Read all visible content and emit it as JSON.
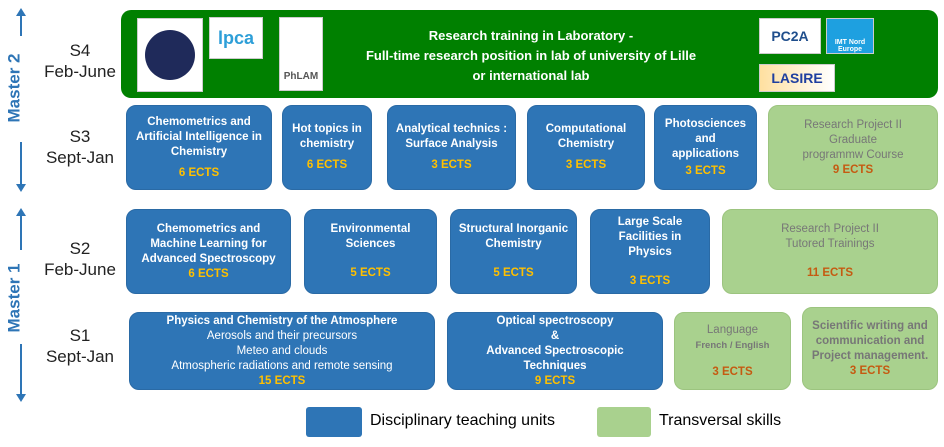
{
  "colors": {
    "disciplinary": "#2e75b6",
    "transversal": "#a9d18e",
    "research": "#008000",
    "ects_blue": "#ffc000",
    "ects_green": "#c55a11"
  },
  "levels": {
    "master2": "Master 2",
    "master1": "Master 1"
  },
  "semesters": [
    {
      "name": "S4",
      "period": "Feb-June"
    },
    {
      "name": "S3",
      "period": "Sept-Jan"
    },
    {
      "name": "S2",
      "period": "Feb-June"
    },
    {
      "name": "S1",
      "period": "Sept-Jan"
    }
  ],
  "s4": {
    "lines": [
      "Research training in Laboratory -",
      "Full-time research position in lab of university of Lille",
      "or international lab"
    ],
    "logos": [
      "Laboratoire d'Optique Atmosphérique",
      "lpca",
      "PhLAM",
      "PC2A",
      "IMT Nord Europe",
      "LASIRE"
    ]
  },
  "s3": [
    {
      "title": "Chemometrics and Artificial Intelligence in Chemistry",
      "ects": "6 ECTS"
    },
    {
      "title": "Hot topics in chemistry",
      "ects": "6 ECTS"
    },
    {
      "title": "Analytical technics : Surface Analysis",
      "ects": "3 ECTS"
    },
    {
      "title": "Computational Chemistry",
      "ects": "3 ECTS"
    },
    {
      "title": "Photosciences and applications",
      "ects": "3 ECTS"
    },
    {
      "title": "Research Project II",
      "sub": "Graduate programmw Course",
      "ects": "9 ECTS"
    }
  ],
  "s2": [
    {
      "title": "Chemometrics and Machine Learning for Advanced Spectroscopy",
      "ects": "6 ECTS"
    },
    {
      "title": "Environmental Sciences",
      "ects": "5 ECTS"
    },
    {
      "title": "Structural Inorganic Chemistry",
      "ects": "5 ECTS"
    },
    {
      "title": "Large Scale Facilities in Physics",
      "ects": "3 ECTS"
    },
    {
      "title": "Research Project II",
      "sub": "Tutored Trainings",
      "ects": "11 ECTS"
    }
  ],
  "s1": [
    {
      "title": "Physics and Chemistry of the Atmosphere",
      "lines": [
        "Aerosols and their precursors",
        "Meteo and clouds",
        "Atmospheric radiations and remote sensing"
      ],
      "ects": "15 ECTS"
    },
    {
      "title": "Optical spectroscopy",
      "lines": [
        "&",
        "Advanced Spectroscopic Techniques"
      ],
      "ects": "9 ECTS"
    },
    {
      "title": "Language",
      "sub": "French / English",
      "ects": "3 ECTS"
    },
    {
      "title": "Scientific writing and communication  and Project management.",
      "ects": "3 ECTS"
    }
  ],
  "legend": {
    "disciplinary": "Disciplinary teaching units",
    "transversal": "Transversal skills"
  }
}
